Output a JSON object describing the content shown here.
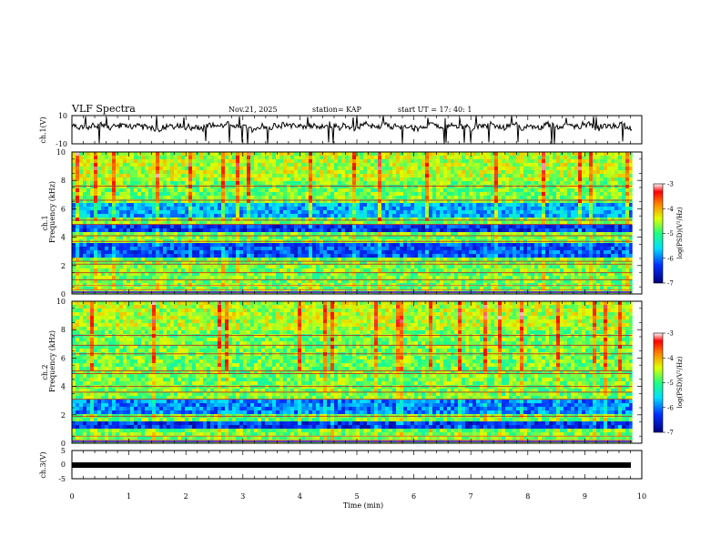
{
  "chart_data": {
    "type": "heatmap",
    "title": "VLF Spectra",
    "date": "Nov.21, 2025",
    "station": "station= KAP",
    "start": "start  UT  =   17: 40: 1",
    "xlabel": "Time  (min)",
    "xlim": [
      0,
      10
    ],
    "x_ticks": [
      "0",
      "1",
      "2",
      "3",
      "4",
      "5",
      "6",
      "7",
      "8",
      "9",
      "10"
    ],
    "data_end_min": 9.83,
    "panels": [
      {
        "name": "ch1-waveform",
        "type": "line",
        "ylabel": "ch.1(V)",
        "ylim": [
          -10,
          10
        ],
        "y_ticks": [
          "10",
          "-10"
        ],
        "baseline": 2,
        "amplitude": 3.5
      },
      {
        "name": "ch1-spectrogram",
        "type": "heatmap",
        "ylabel_top": "ch.1",
        "ylabel": "Frequency  (kHz)",
        "ylim": [
          0,
          10
        ],
        "y_ticks": [
          "0",
          "2",
          "4",
          "6",
          "8",
          "10"
        ],
        "colorbar": {
          "label": "log(PSD)(V²/Hz)",
          "range": [
            -7,
            -3
          ],
          "ticks": [
            "-3",
            "-4",
            "-5",
            "-6",
            "-7"
          ]
        },
        "low_bands_khz": [
          [
            5.4,
            6.5,
            0.25
          ],
          [
            2.6,
            3.5,
            0.35
          ],
          [
            4.3,
            4.9,
            0.4
          ]
        ],
        "lines_khz": [
          0.3,
          0.6,
          1.0,
          1.5,
          2.1,
          2.3,
          3.7,
          4.1,
          4.9,
          5.2,
          6.6,
          7.6
        ]
      },
      {
        "name": "ch2-spectrogram",
        "type": "heatmap",
        "ylabel_top": "ch.2",
        "ylabel": "Frequency  (kHz)",
        "ylim": [
          0,
          10
        ],
        "y_ticks": [
          "0",
          "2",
          "4",
          "6",
          "8",
          "10"
        ],
        "colorbar": {
          "label": "log(PSD)(V²/Hz)",
          "range": [
            -7,
            -3
          ],
          "ticks": [
            "-3",
            "-4",
            "-5",
            "-6",
            "-7"
          ]
        },
        "low_bands_khz": [
          [
            2.0,
            3.0,
            0.3
          ],
          [
            1.0,
            1.6,
            0.4
          ]
        ],
        "lines_khz": [
          0.2,
          0.5,
          1.9,
          3.1,
          3.6,
          4.0,
          4.9,
          5.1,
          6.3,
          6.9,
          7.6
        ]
      },
      {
        "name": "ch3-trace",
        "type": "line",
        "ylabel": "ch.3(V)",
        "ylim": [
          -5,
          5
        ],
        "y_ticks": [
          "5",
          "0",
          "-5"
        ],
        "constant_value": 0
      }
    ]
  }
}
